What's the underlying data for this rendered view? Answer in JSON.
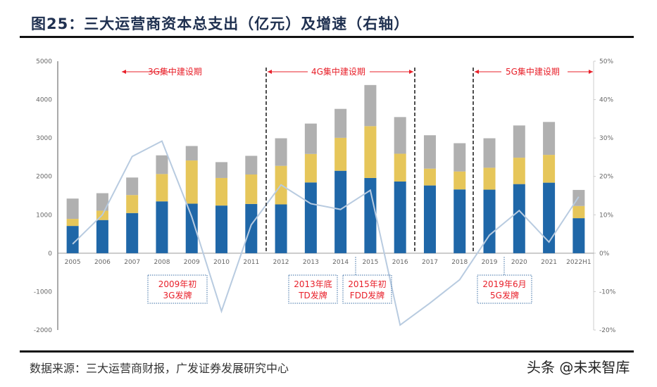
{
  "title": "图25：三大运营商资本总支出（亿元）及增速（右轴）",
  "source": "数据来源：三大运营商财报，广发证券发展研究中心",
  "watermark": "头条 @未来智库",
  "chart_data": {
    "type": "bar",
    "stacked": true,
    "title": "",
    "categories": [
      "2005",
      "2006",
      "2007",
      "2008",
      "2009",
      "2010",
      "2011",
      "2012",
      "2013",
      "2014",
      "2015",
      "2016",
      "2017",
      "2018",
      "2019",
      "2020",
      "2021",
      "2022H1"
    ],
    "series": [
      {
        "color": "#1f67a8",
        "values": [
          710,
          864,
          1046,
          1350,
          1290,
          1241,
          1283,
          1271,
          1843,
          2147,
          1959,
          1867,
          1764,
          1661,
          1655,
          1800,
          1837,
          912
        ]
      },
      {
        "color": "#e6c65a",
        "values": [
          184,
          243,
          469,
          712,
          1125,
          718,
          767,
          1004,
          742,
          858,
          1350,
          724,
          438,
          468,
          571,
          688,
          724,
          317
        ]
      },
      {
        "color": "#b0b0b0",
        "values": [
          529,
          456,
          456,
          487,
          377,
          413,
          486,
          718,
          791,
          754,
          1071,
          955,
          870,
          736,
          767,
          839,
          857,
          419
        ]
      }
    ],
    "line_series": {
      "axis": "right",
      "color": "#b8cbe0",
      "values": [
        2.4,
        10.0,
        25.2,
        29.2,
        9.5,
        -15.1,
        7.4,
        17.8,
        12.9,
        11.4,
        16.4,
        -18.7,
        -13.0,
        -6.9,
        4.7,
        11.1,
        2.9,
        14.7
      ]
    },
    "ylim": [
      -2000,
      5000
    ],
    "yticks": [
      "5000",
      "4000",
      "3000",
      "2000",
      "1000",
      "0",
      "-1000",
      "-2000"
    ],
    "y2lim": [
      -20,
      50
    ],
    "y2ticks": [
      "50%",
      "40%",
      "30%",
      "20%",
      "10%",
      "0%",
      "-10%",
      "-20%"
    ],
    "grid": false,
    "periods": [
      {
        "label": "3G集中建设期"
      },
      {
        "label": "4G集中建设期"
      },
      {
        "label": "5G集中建设期"
      }
    ],
    "annotations": [
      {
        "line1": "2009年初",
        "line2": "3G发牌"
      },
      {
        "line1": "2013年底",
        "line2": "TD发牌"
      },
      {
        "line1": "2015年初",
        "line2": "FDD发牌"
      },
      {
        "line1": "2019年6月",
        "line2": "5G发牌"
      }
    ]
  }
}
